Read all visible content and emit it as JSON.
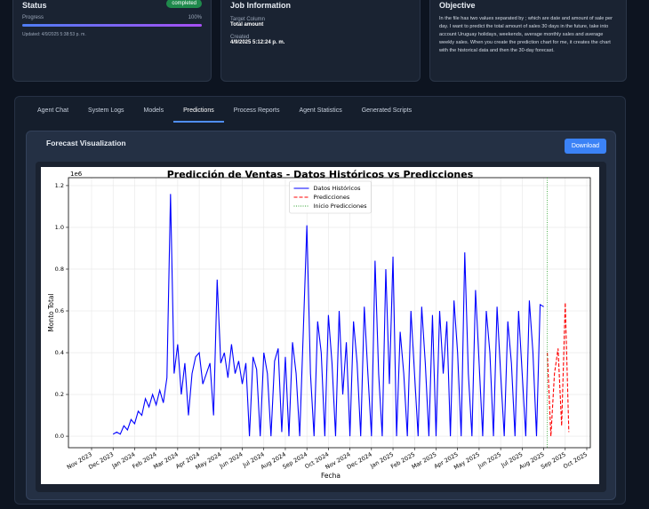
{
  "status_card": {
    "title": "Status",
    "badge": "completed",
    "progress_label": "Progress",
    "progress": {
      "value": 100,
      "label": "100%"
    },
    "updated": "Updated: 4/9/2025 5:38:53 p. m."
  },
  "job_card": {
    "title": "Job Information",
    "target_label": "Target Column",
    "target": "Total amount",
    "created_label": "Created",
    "created": "4/9/2025 5:12:24 p. m."
  },
  "objective_card": {
    "title": "Objective",
    "text": "In the file has two values separated by ; which are date and amount of sale per day. I want to predict the total amount of sales 30 days in the future, take into account Uruguay holidays, weekends, average monthly sales and average weekly sales. When you create the prediction chart for me, it creates the chart with the historical data and then the 30-day forecast."
  },
  "tabs": [
    {
      "label": "Agent Chat",
      "active": false
    },
    {
      "label": "System Logs",
      "active": false
    },
    {
      "label": "Models",
      "active": false
    },
    {
      "label": "Predictions",
      "active": true
    },
    {
      "label": "Process Reports",
      "active": false
    },
    {
      "label": "Agent Statistics",
      "active": false
    },
    {
      "label": "Generated Scripts",
      "active": false
    }
  ],
  "panel": {
    "title": "Forecast Visualization",
    "button": "Download",
    "chart": {
      "type": "line",
      "title": "Predicción de Ventas - Datos Históricos vs Predicciones",
      "x_label": "Fecha",
      "y_label": "Monto Total",
      "y_offset_label": "1e6",
      "grid": true,
      "legend": "top-center",
      "categories": [
        "Nov 2023",
        null,
        null,
        null,
        null,
        null,
        "Dec 2023",
        null,
        null,
        null,
        null,
        null,
        "Jan 2024",
        null,
        null,
        null,
        null,
        null,
        "Feb 2024",
        null,
        null,
        null,
        null,
        null,
        "Mar 2024",
        null,
        null,
        null,
        null,
        null,
        "Apr 2024",
        null,
        null,
        null,
        null,
        null,
        "May 2024",
        null,
        null,
        null,
        null,
        null,
        "Jun 2024",
        null,
        null,
        null,
        null,
        null,
        "Jul 2024",
        null,
        null,
        null,
        null,
        null,
        "Aug 2024",
        null,
        null,
        null,
        null,
        null,
        "Sep 2024",
        null,
        null,
        null,
        null,
        null,
        "Oct 2024",
        null,
        null,
        null,
        null,
        null,
        "Nov 2024",
        null,
        null,
        null,
        null,
        null,
        "Dec 2024",
        null,
        null,
        null,
        null,
        null,
        "Jan 2025",
        null,
        null,
        null,
        null,
        null,
        "Feb 2025",
        null,
        null,
        null,
        null,
        null,
        "Mar 2025",
        null,
        null,
        null,
        null,
        null,
        "Apr 2025",
        null,
        null,
        null,
        null,
        null,
        "May 2025",
        null,
        null,
        null,
        null,
        null,
        "Jun 2025",
        null,
        null,
        null,
        null,
        null,
        "Jul 2025",
        null,
        null,
        null,
        null,
        null,
        "Aug 2025",
        null,
        null,
        null,
        null,
        null,
        "Sep 2025",
        null,
        null,
        null,
        null,
        null,
        "Oct 2025"
      ],
      "series": [
        {
          "name": "Datos Históricos",
          "color": "#0000ff",
          "style": "solid",
          "values": [
            null,
            null,
            null,
            null,
            null,
            null,
            0.01,
            0.02,
            0.01,
            0.05,
            0.03,
            0.08,
            0.06,
            0.12,
            0.1,
            0.18,
            0.14,
            0.2,
            0.15,
            0.22,
            0.16,
            0.28,
            1.16,
            0.3,
            0.44,
            0.2,
            0.35,
            0.1,
            0.3,
            0.38,
            0.4,
            0.25,
            0.3,
            0.35,
            0.1,
            0.75,
            0.35,
            0.4,
            0.28,
            0.44,
            0.3,
            0.36,
            0.25,
            0.35,
            0,
            0.38,
            0.32,
            0,
            0.4,
            0.3,
            0,
            0.36,
            0.42,
            0.02,
            0.38,
            0,
            0.45,
            0.3,
            0,
            0.5,
            1.01,
            0.3,
            0,
            0.55,
            0.4,
            0,
            0.58,
            0.35,
            0,
            0.6,
            0.2,
            0.45,
            0,
            0.55,
            0.35,
            0,
            0.62,
            0.3,
            0,
            0.84,
            0.3,
            0,
            0.8,
            0.25,
            0.86,
            0,
            0.5,
            0.3,
            0,
            0.6,
            0.3,
            0,
            0.62,
            0.35,
            0,
            0.58,
            0,
            0.6,
            0.3,
            0.55,
            0,
            0.65,
            0.4,
            0,
            0.88,
            0.3,
            0,
            0.7,
            0.35,
            0,
            0.6,
            0.4,
            0,
            0.62,
            0.3,
            0,
            0.55,
            0.35,
            0,
            0.6,
            0.3,
            0,
            0.65,
            0.4,
            0,
            0.63,
            0.62,
            null,
            null,
            null,
            null,
            null,
            null,
            null,
            null,
            null,
            null,
            null,
            null
          ]
        },
        {
          "name": "Predicciones",
          "color": "#ff0000",
          "style": "dashed",
          "values": [
            null,
            null,
            null,
            null,
            null,
            null,
            null,
            null,
            null,
            null,
            null,
            null,
            null,
            null,
            null,
            null,
            null,
            null,
            null,
            null,
            null,
            null,
            null,
            null,
            null,
            null,
            null,
            null,
            null,
            null,
            null,
            null,
            null,
            null,
            null,
            null,
            null,
            null,
            null,
            null,
            null,
            null,
            null,
            null,
            null,
            null,
            null,
            null,
            null,
            null,
            null,
            null,
            null,
            null,
            null,
            null,
            null,
            null,
            null,
            null,
            null,
            null,
            null,
            null,
            null,
            null,
            null,
            null,
            null,
            null,
            null,
            null,
            null,
            null,
            null,
            null,
            null,
            null,
            null,
            null,
            null,
            null,
            null,
            null,
            null,
            null,
            null,
            null,
            null,
            null,
            null,
            null,
            null,
            null,
            null,
            null,
            null,
            null,
            null,
            null,
            null,
            null,
            null,
            null,
            null,
            null,
            null,
            null,
            null,
            null,
            null,
            null,
            null,
            null,
            null,
            null,
            null,
            null,
            null,
            null,
            null,
            null,
            null,
            null,
            null,
            null,
            null,
            0.4,
            0,
            0.3,
            0.42,
            0.05,
            0.64,
            0.02,
            null,
            null,
            null,
            null,
            null
          ]
        },
        {
          "name": "Inicio Predicciones",
          "color": "#2ca02c",
          "style": "dotted"
        }
      ],
      "ylim": [
        -0.055,
        1.238
      ],
      "yticks": [
        {
          "value": 0,
          "label": "0.0"
        },
        0.2,
        0.4,
        0.6,
        0.8,
        {
          "value": 1,
          "label": "1.0"
        },
        1.2
      ]
    }
  }
}
